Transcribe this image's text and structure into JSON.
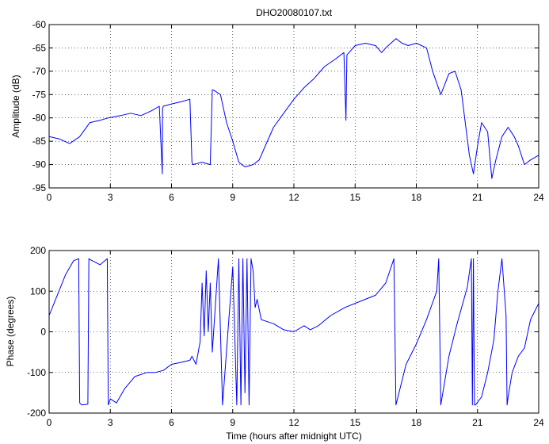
{
  "colors": {
    "series": "#0000ff",
    "axes": "#000000",
    "background": "#ffffff"
  },
  "chart_data": [
    {
      "type": "line",
      "title": "DHO20080107.txt",
      "xlabel": "",
      "ylabel": "Amplitude (dB)",
      "xlim": [
        0,
        24
      ],
      "ylim": [
        -95,
        -60
      ],
      "xticks": [
        "0",
        "3",
        "6",
        "9",
        "12",
        "15",
        "18",
        "21",
        "24"
      ],
      "yticks": [
        "-60",
        "-65",
        "-70",
        "-75",
        "-80",
        "-85",
        "-90",
        "-95"
      ],
      "grid": true,
      "series": [
        {
          "x": [
            0,
            0.5,
            1.0,
            1.5,
            2.0,
            2.5,
            2.9,
            3.5,
            4.0,
            4.5,
            5.0,
            5.4,
            5.55,
            5.56,
            5.6,
            6.0,
            6.5,
            6.9,
            7.0,
            7.05,
            7.5,
            7.9,
            8.0,
            8.05,
            8.4,
            8.7,
            9.0,
            9.3,
            9.6,
            10.0,
            10.3,
            10.6,
            11.0,
            11.5,
            12.0,
            12.5,
            13.0,
            13.5,
            14.0,
            14.45,
            14.55,
            14.6,
            14.8,
            15.0,
            15.5,
            16.0,
            16.3,
            16.5,
            17.0,
            17.3,
            17.6,
            18.0,
            18.5,
            18.8,
            19.2,
            19.6,
            19.9,
            20.2,
            20.6,
            20.8,
            21.0,
            21.2,
            21.5,
            21.7,
            21.9,
            22.2,
            22.5,
            22.8,
            23.0,
            23.3,
            23.6,
            24.0
          ],
          "y": [
            -84,
            -84.5,
            -85.5,
            -84,
            -81,
            -80.5,
            -80,
            -79.5,
            -79,
            -79.5,
            -78.5,
            -77.5,
            -92,
            -78,
            -77.5,
            -77,
            -76.5,
            -76,
            -89.5,
            -90,
            -89.5,
            -90,
            -74,
            -74,
            -75,
            -81,
            -85,
            -89.5,
            -90.5,
            -90,
            -89,
            -86,
            -82,
            -79,
            -76,
            -73.5,
            -71.5,
            -69,
            -67.5,
            -66,
            -80.5,
            -66.5,
            -65.5,
            -64.5,
            -64,
            -64.5,
            -66,
            -65,
            -63,
            -64,
            -64.5,
            -64,
            -65,
            -70,
            -75,
            -70.5,
            -70,
            -74,
            -88,
            -92,
            -86,
            -81,
            -83,
            -93,
            -89,
            -84,
            -82,
            -84,
            -86,
            -90,
            -89,
            -88
          ]
        }
      ]
    },
    {
      "type": "line",
      "title": "",
      "xlabel": "Time (hours after midnight UTC)",
      "ylabel": "Phase (degrees)",
      "xlim": [
        0,
        24
      ],
      "ylim": [
        -200,
        200
      ],
      "xticks": [
        "0",
        "3",
        "6",
        "9",
        "12",
        "15",
        "18",
        "21",
        "24"
      ],
      "yticks": [
        "200",
        "100",
        "0",
        "-100",
        "-200"
      ],
      "grid": true,
      "series": [
        {
          "x": [
            0,
            0.4,
            0.8,
            1.2,
            1.45,
            1.5,
            1.6,
            1.9,
            1.95,
            2.0,
            2.5,
            2.85,
            2.9,
            3.0,
            3.3,
            3.7,
            4.2,
            4.8,
            5.2,
            5.6,
            6.0,
            6.5,
            6.9,
            7.0,
            7.2,
            7.4,
            7.5,
            7.6,
            7.7,
            7.8,
            7.9,
            8.0,
            8.3,
            8.5,
            9.0,
            9.2,
            9.3,
            9.4,
            9.5,
            9.6,
            9.7,
            9.8,
            9.9,
            10.0,
            10.1,
            10.2,
            10.4,
            10.7,
            11.0,
            11.5,
            12.0,
            12.5,
            12.8,
            13.2,
            13.8,
            14.5,
            15.0,
            15.5,
            16.0,
            16.5,
            16.9,
            17.0,
            17.5,
            18.0,
            18.5,
            19.0,
            19.1,
            19.2,
            19.6,
            20.0,
            20.5,
            20.7,
            20.75,
            20.8,
            20.85,
            20.9,
            21.2,
            21.5,
            21.8,
            22.0,
            22.2,
            22.4,
            22.45,
            22.5,
            22.7,
            23.0,
            23.3,
            23.6,
            24.0
          ],
          "y": [
            40,
            90,
            140,
            175,
            180,
            -175,
            -180,
            -178,
            180,
            178,
            165,
            180,
            -180,
            -165,
            -175,
            -140,
            -110,
            -100,
            -100,
            -95,
            -80,
            -75,
            -70,
            -60,
            -80,
            -25,
            120,
            -10,
            150,
            0,
            120,
            -50,
            180,
            -180,
            160,
            -180,
            180,
            -180,
            180,
            -150,
            180,
            -180,
            180,
            150,
            60,
            80,
            30,
            25,
            20,
            5,
            0,
            15,
            5,
            15,
            40,
            60,
            70,
            80,
            90,
            120,
            180,
            -180,
            -80,
            -30,
            30,
            100,
            180,
            -180,
            -60,
            20,
            110,
            180,
            -180,
            180,
            -180,
            -180,
            -160,
            -100,
            -20,
            100,
            180,
            40,
            -180,
            -160,
            -100,
            -60,
            -40,
            30,
            70
          ]
        }
      ]
    }
  ]
}
